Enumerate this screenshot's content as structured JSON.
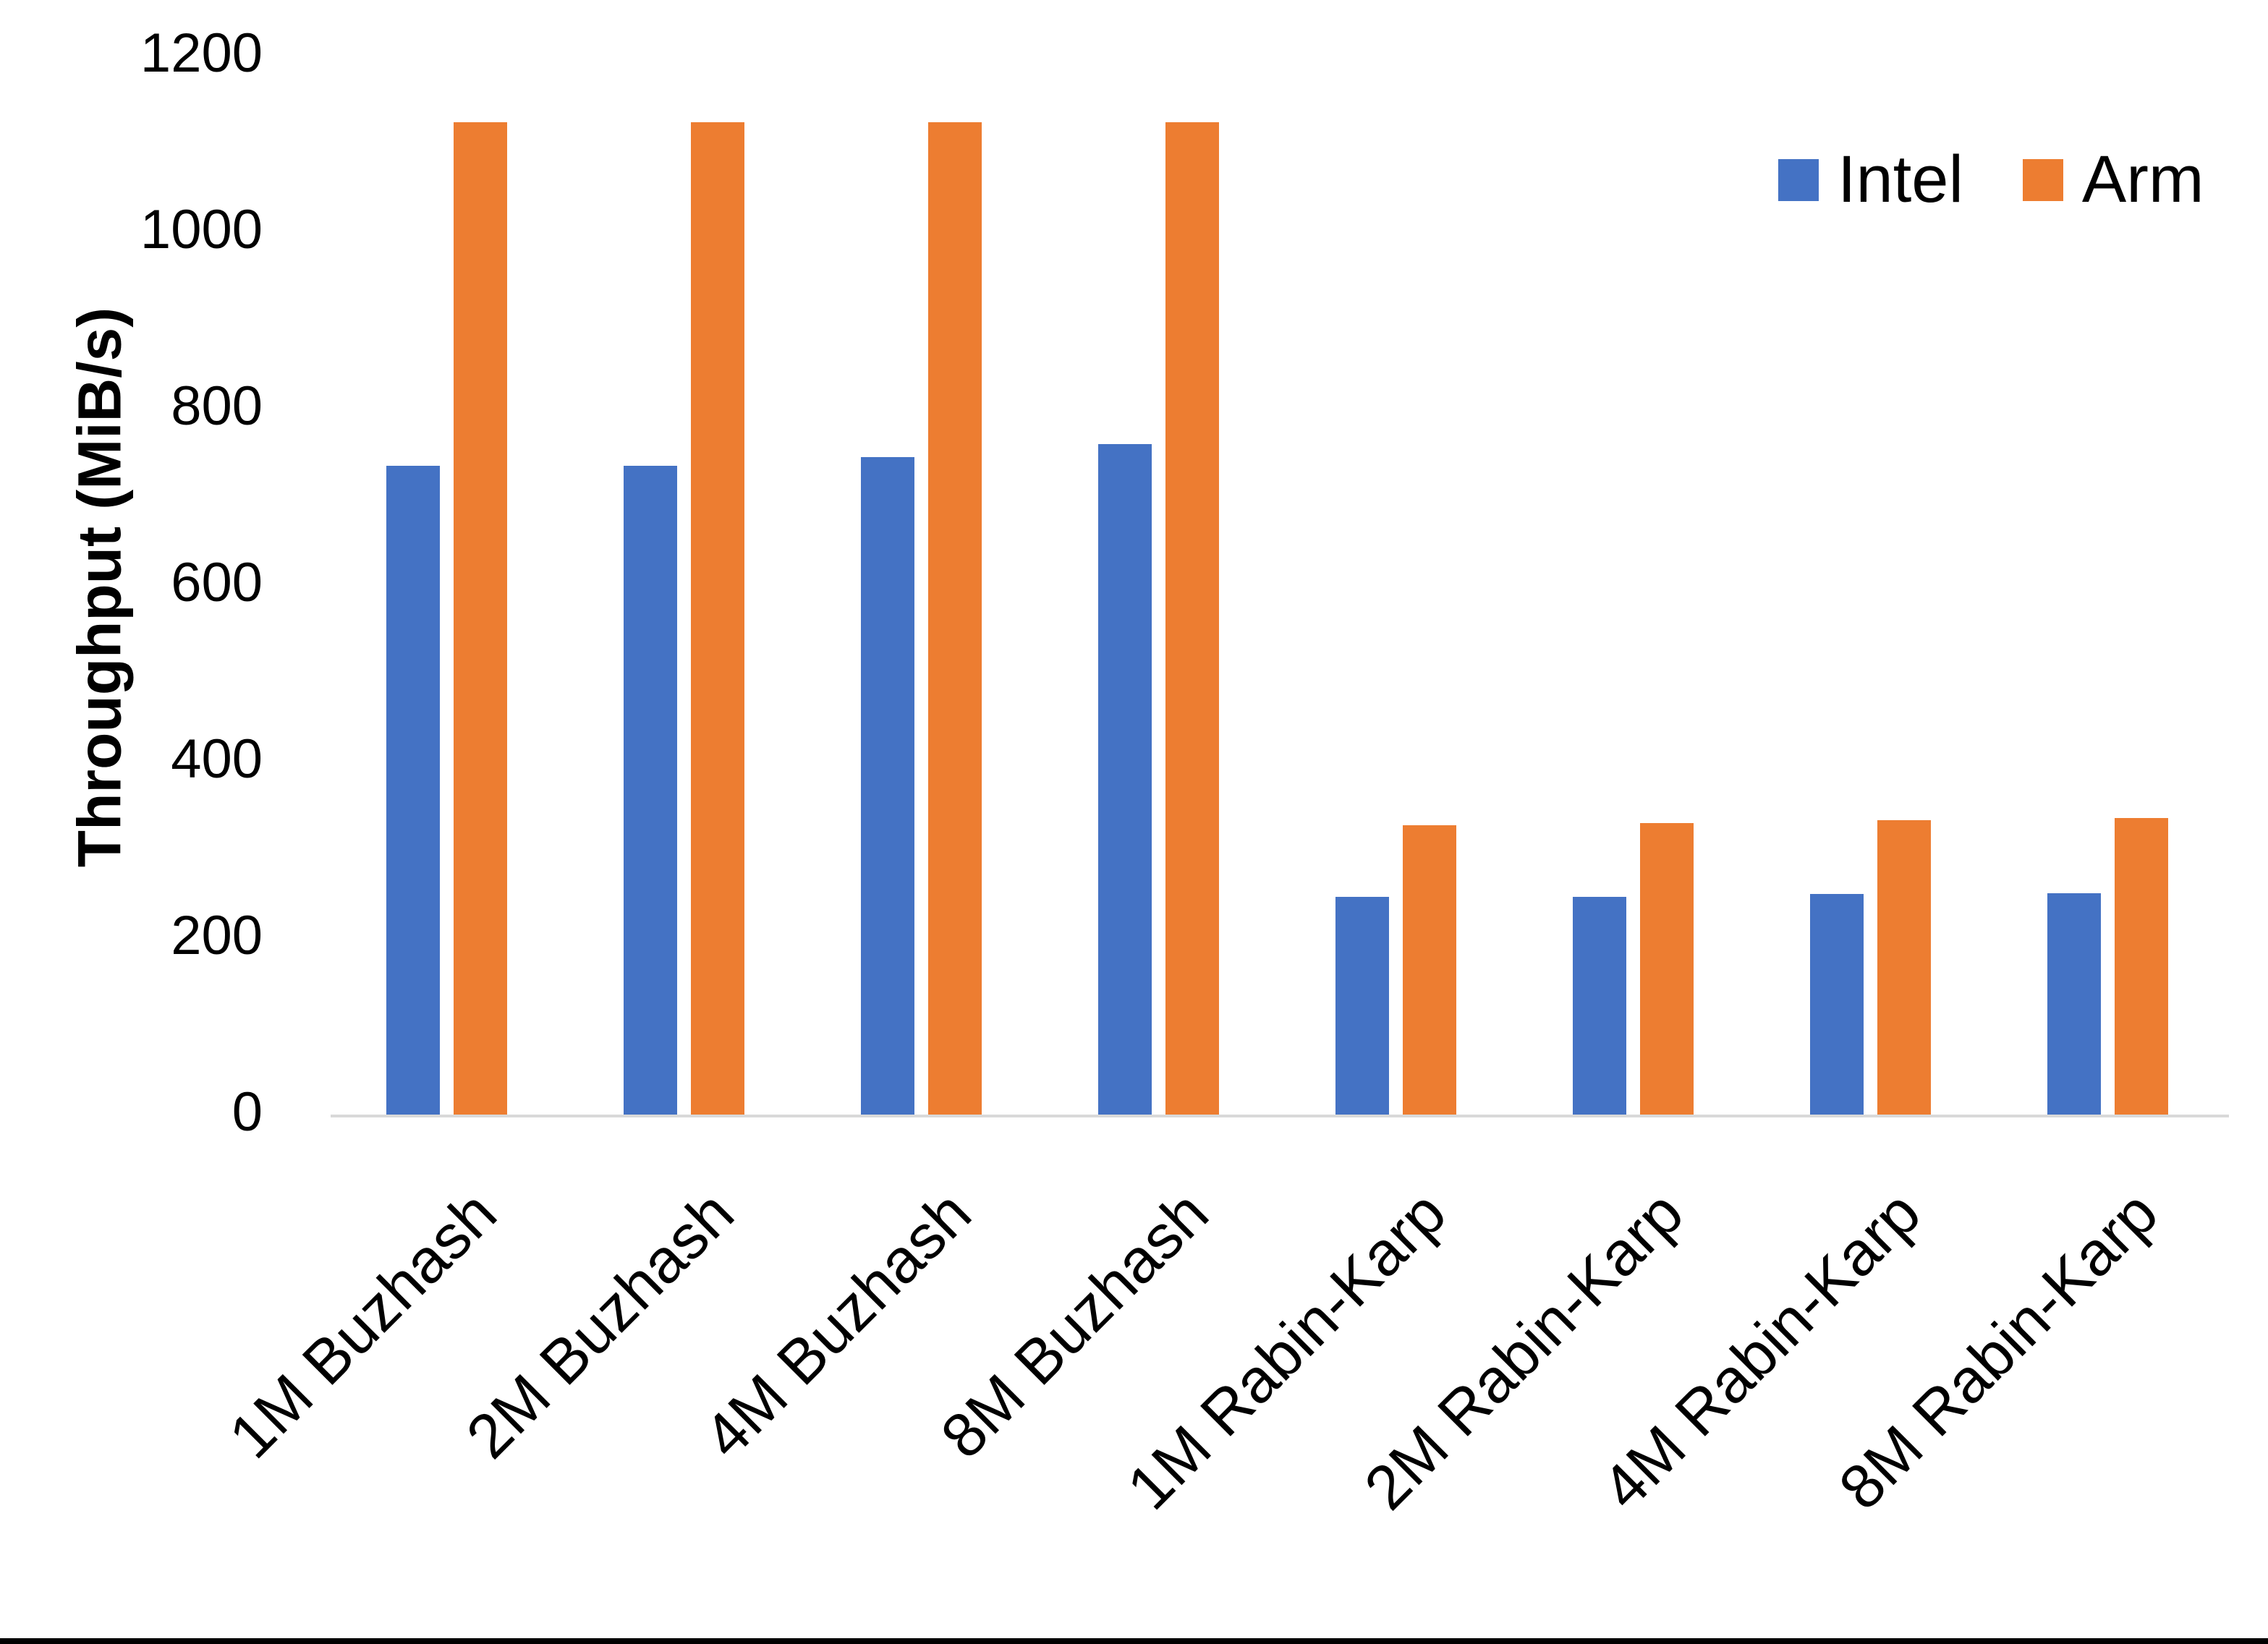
{
  "chart_data": {
    "type": "bar",
    "title": "",
    "xlabel": "",
    "ylabel": "Throughput (MiB/s)",
    "ylim": [
      0,
      1200
    ],
    "ytick_step": 200,
    "grid": false,
    "legend_position": "top-right",
    "categories": [
      "1M Buzhash",
      "2M Buzhash",
      "4M Buzhash",
      "8M Buzhash",
      "1M Rabin-Karp",
      "2M Rabin-Karp",
      "4M Rabin-Karp",
      "8M Rabin-Karp"
    ],
    "series": [
      {
        "name": "Intel",
        "color": "#4472C4",
        "values": [
          735,
          735,
          745,
          760,
          247,
          247,
          250,
          251
        ]
      },
      {
        "name": "Arm",
        "color": "#ED7D31",
        "values": [
          1125,
          1125,
          1125,
          1125,
          328,
          330,
          334,
          336
        ]
      }
    ]
  },
  "colors": {
    "background": "#FFFFFF",
    "axis_line": "#D9D9D9",
    "text": "#000000",
    "bottom_border": "#000000"
  }
}
